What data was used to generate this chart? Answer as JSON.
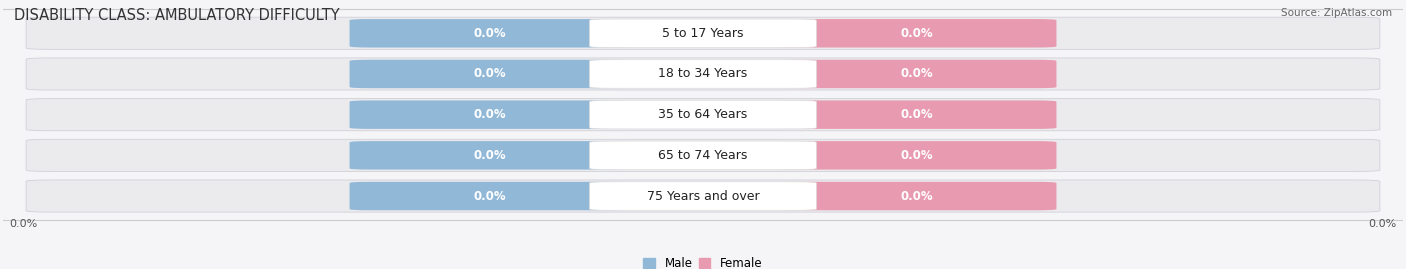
{
  "title": "DISABILITY CLASS: AMBULATORY DIFFICULTY",
  "source": "Source: ZipAtlas.com",
  "categories": [
    "5 to 17 Years",
    "18 to 34 Years",
    "35 to 64 Years",
    "65 to 74 Years",
    "75 Years and over"
  ],
  "male_values": [
    0.0,
    0.0,
    0.0,
    0.0,
    0.0
  ],
  "female_values": [
    0.0,
    0.0,
    0.0,
    0.0,
    0.0
  ],
  "male_color": "#92b8d8",
  "female_color": "#e89ab0",
  "bar_bg_color": "#ebebee",
  "bar_border_color": "#d0d0d8",
  "center_bg_color": "#f5f5f8",
  "left_label": "0.0%",
  "right_label": "0.0%",
  "background_color": "#f5f5f8",
  "title_fontsize": 10.5,
  "label_fontsize": 8,
  "category_fontsize": 9,
  "value_fontsize": 8.5
}
